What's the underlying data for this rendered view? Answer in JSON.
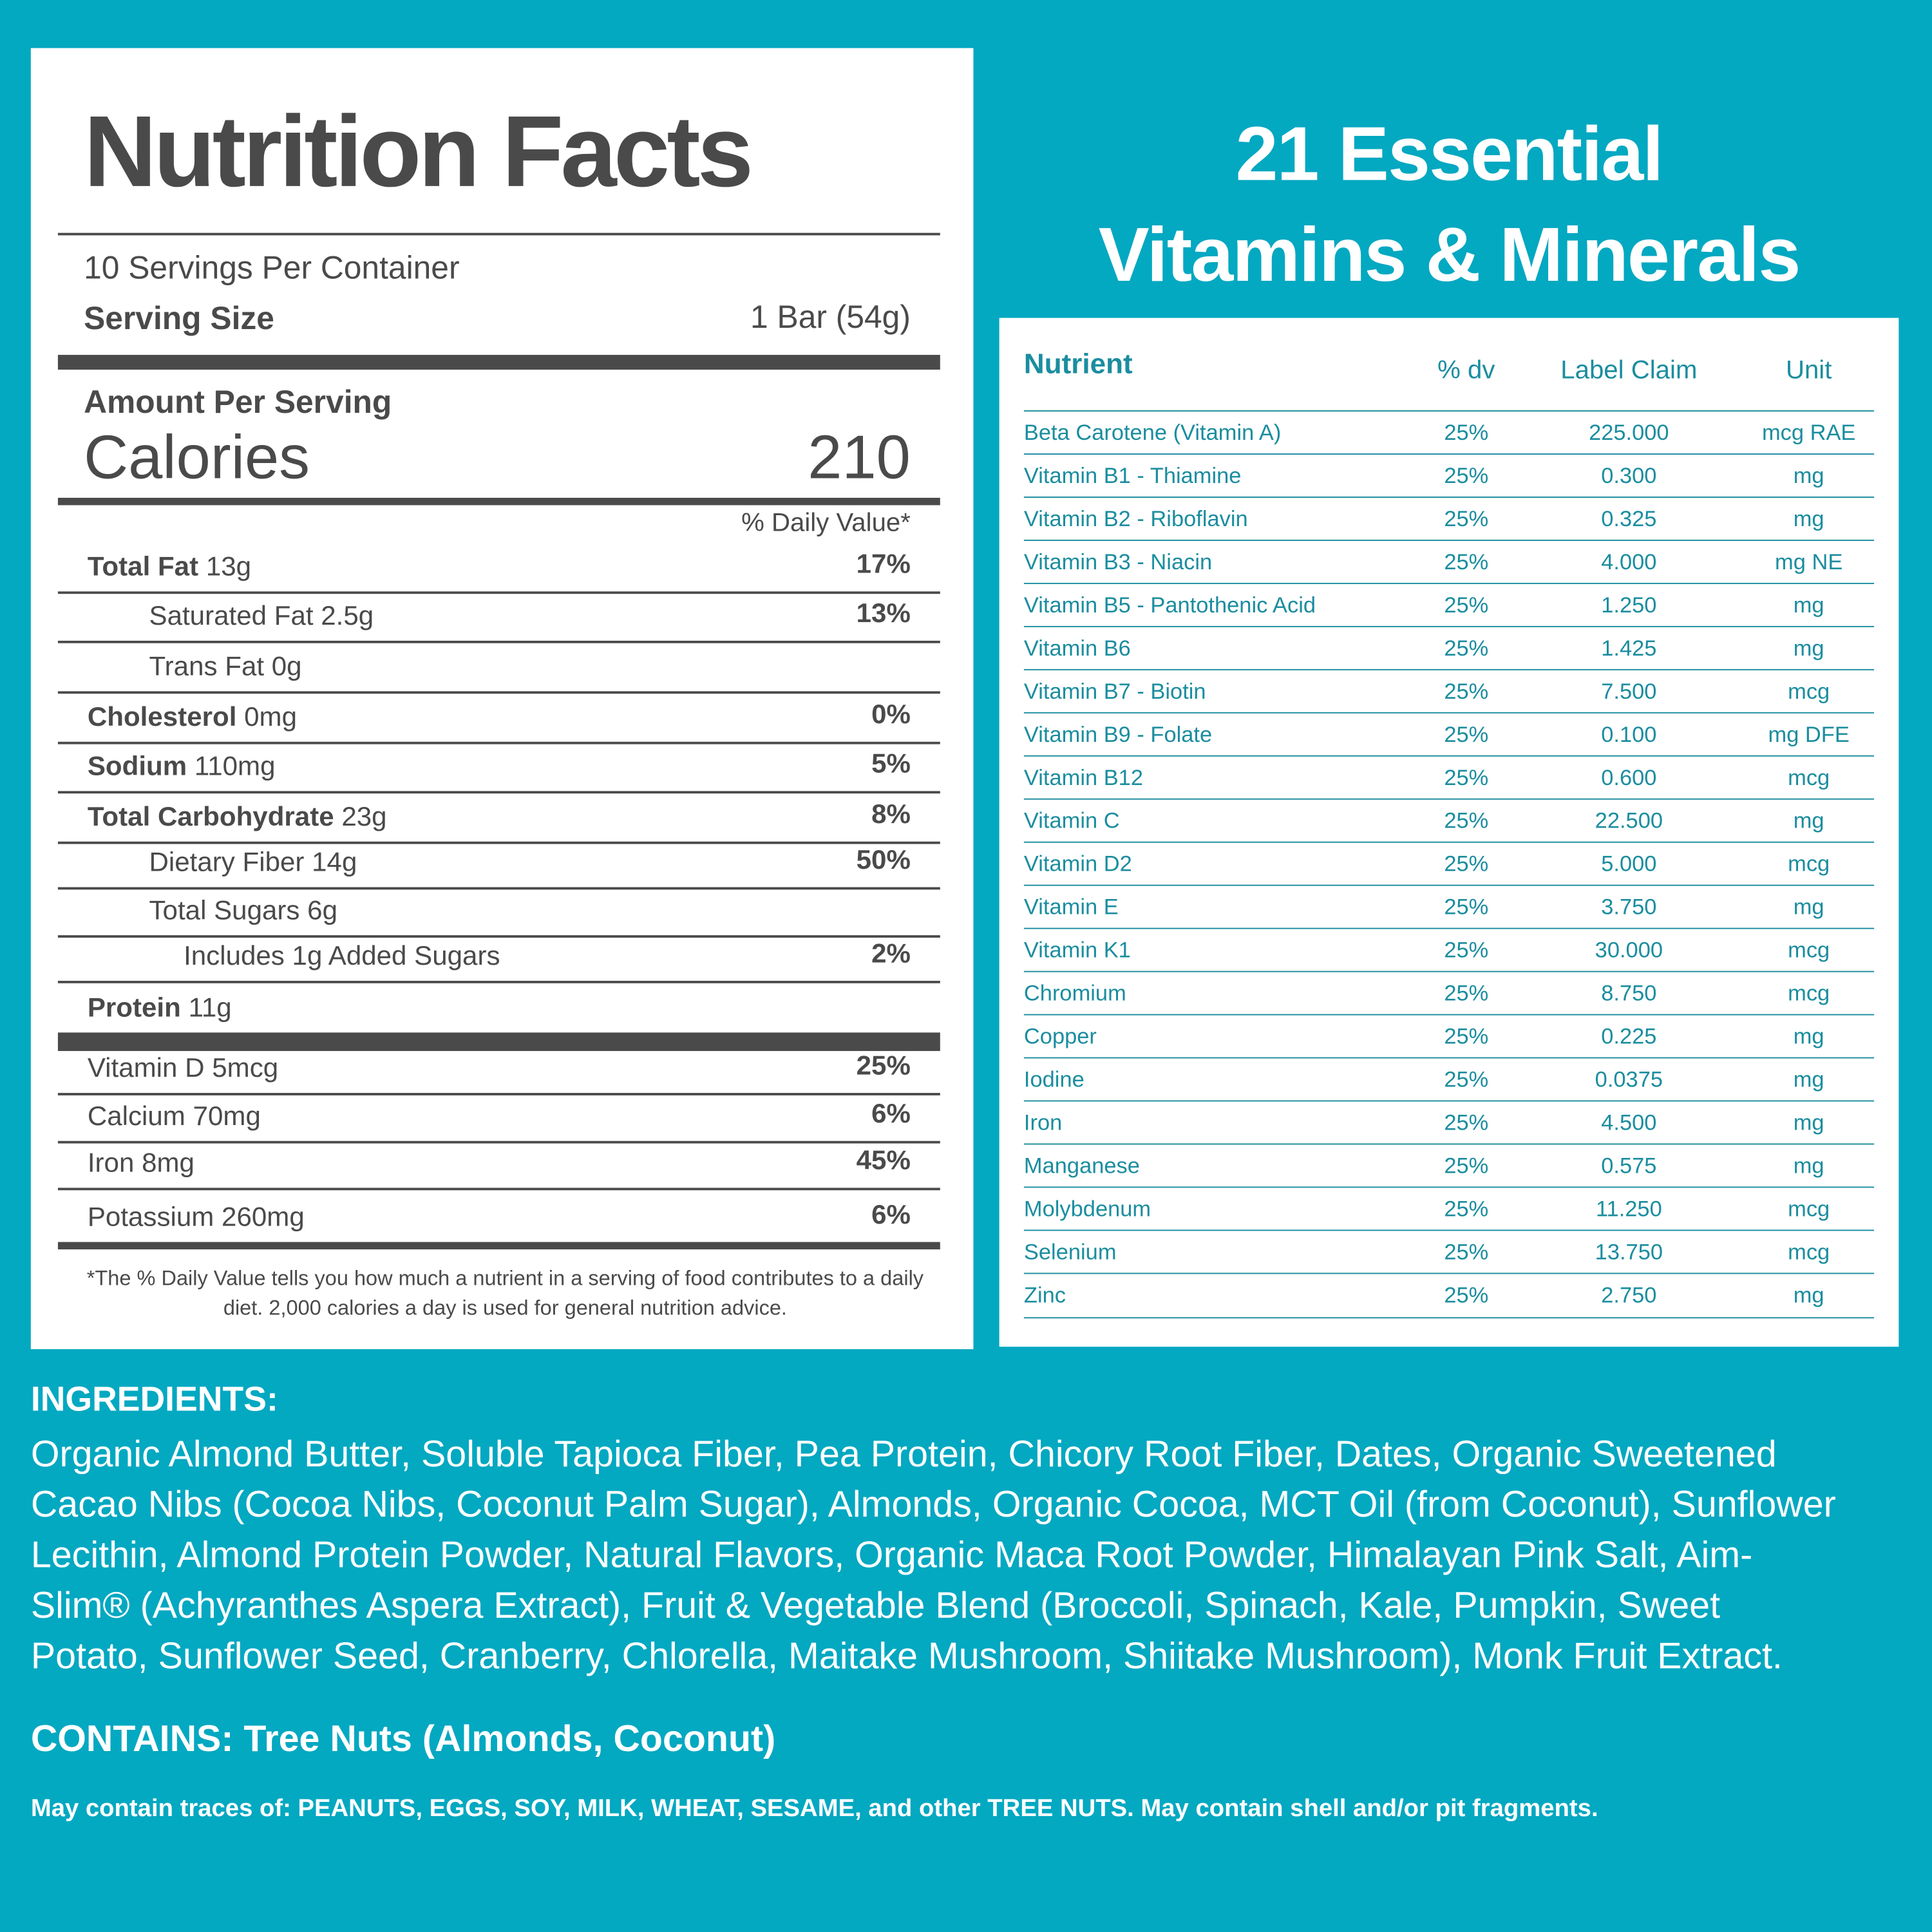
{
  "nutrition_facts": {
    "title": "Nutrition Facts",
    "servings": "10 Servings Per Container",
    "serving_size_label": "Serving Size",
    "serving_size_value": "1 Bar (54g)",
    "amount_per_serving": "Amount Per Serving",
    "calories_label": "Calories",
    "calories_value": "210",
    "dv_header": "% Daily Value*",
    "rows": [
      {
        "name": "Total Fat",
        "amount": "13g",
        "dv": "17%"
      },
      {
        "text": "Saturated Fat 2.5g",
        "dv": "13%"
      },
      {
        "text": "Trans Fat 0g"
      },
      {
        "name": "Cholesterol",
        "amount": "0mg",
        "dv": "0%"
      },
      {
        "name": "Sodium",
        "amount": "110mg",
        "dv": "5%"
      },
      {
        "name": "Total Carbohydrate",
        "amount": "23g",
        "dv": "8%"
      },
      {
        "text": "Dietary Fiber 14g",
        "dv": "50%"
      },
      {
        "text": "Total Sugars 6g"
      },
      {
        "text": "Includes 1g Added Sugars",
        "dv": "2%"
      },
      {
        "name": "Protein",
        "amount": "11g"
      }
    ],
    "vitamins": [
      {
        "text": "Vitamin D 5mcg",
        "dv": "25%"
      },
      {
        "text": "Calcium 70mg",
        "dv": "6%"
      },
      {
        "text": "Iron 8mg",
        "dv": "45%"
      },
      {
        "text": "Potassium 260mg",
        "dv": "6%"
      }
    ],
    "footnote": "*The % Daily Value tells you how much a nutrient in a serving of food contributes to a daily diet. 2,000 calories a day is used for general nutrition advice."
  },
  "essentials": {
    "title_line1": "21 Essential",
    "title_line2": "Vitamins & Minerals",
    "header": [
      "Nutrient",
      "% dv",
      "Label Claim",
      "Unit"
    ],
    "rows": [
      [
        "Beta Carotene (Vitamin A)",
        "25%",
        "225.000",
        "mcg RAE"
      ],
      [
        "Vitamin B1 - Thiamine",
        "25%",
        "0.300",
        "mg"
      ],
      [
        "Vitamin B2 - Riboflavin",
        "25%",
        "0.325",
        "mg"
      ],
      [
        "Vitamin B3 - Niacin",
        "25%",
        "4.000",
        "mg NE"
      ],
      [
        "Vitamin B5 - Pantothenic Acid",
        "25%",
        "1.250",
        "mg"
      ],
      [
        "Vitamin B6",
        "25%",
        "1.425",
        "mg"
      ],
      [
        "Vitamin B7 - Biotin",
        "25%",
        "7.500",
        "mcg"
      ],
      [
        "Vitamin B9 - Folate",
        "25%",
        "0.100",
        "mg DFE"
      ],
      [
        "Vitamin B12",
        "25%",
        "0.600",
        "mcg"
      ],
      [
        "Vitamin C",
        "25%",
        "22.500",
        "mg"
      ],
      [
        "Vitamin D2",
        "25%",
        "5.000",
        "mcg"
      ],
      [
        "Vitamin E",
        "25%",
        "3.750",
        "mg"
      ],
      [
        "Vitamin K1",
        "25%",
        "30.000",
        "mcg"
      ],
      [
        "Chromium",
        "25%",
        "8.750",
        "mcg"
      ],
      [
        "Copper",
        "25%",
        "0.225",
        "mg"
      ],
      [
        "Iodine",
        "25%",
        "0.0375",
        "mg"
      ],
      [
        "Iron",
        "25%",
        "4.500",
        "mg"
      ],
      [
        "Manganese",
        "25%",
        "0.575",
        "mg"
      ],
      [
        "Molybdenum",
        "25%",
        "11.250",
        "mcg"
      ],
      [
        "Selenium",
        "25%",
        "13.750",
        "mcg"
      ],
      [
        "Zinc",
        "25%",
        "2.750",
        "mg"
      ]
    ]
  },
  "ingredients": {
    "heading": "INGREDIENTS:",
    "text": "Organic Almond Butter, Soluble Tapioca Fiber, Pea Protein, Chicory Root Fiber, Dates, Organic Sweetened Cacao Nibs (Cocoa Nibs, Coconut Palm Sugar), Almonds, Organic Cocoa, MCT Oil (from Coconut), Sunflower Lecithin, Almond Protein Powder, Natural Flavors, Organic Maca Root Powder, Himalayan Pink Salt, Aim-Slim® (Achyranthes Aspera Extract), Fruit & Vegetable Blend (Broccoli, Spinach, Kale, Pumpkin, Sweet Potato, Sunflower Seed, Cranberry, Chlorella, Maitake Mushroom, Shiitake Mushroom), Monk Fruit Extract.",
    "contains": "CONTAINS: Tree Nuts (Almonds, Coconut)",
    "traces": "May contain traces of: PEANUTS, EGGS, SOY, MILK, WHEAT, SESAME, and other TREE NUTS. May contain shell and/or pit fragments."
  }
}
